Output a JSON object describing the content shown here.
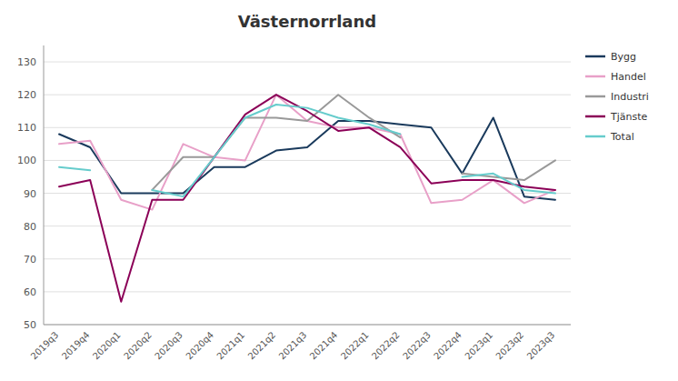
{
  "chart_data": {
    "type": "line",
    "title": "Västernorrland",
    "categories": [
      "2019q3",
      "2019q4",
      "2020q1",
      "2020q2",
      "2020q3",
      "2020q4",
      "2021q1",
      "2021q2",
      "2021q3",
      "2021q4",
      "2022q1",
      "2022q2",
      "2022q3",
      "2022q4",
      "2023q1",
      "2023q2",
      "2023q3"
    ],
    "series": [
      {
        "name": "Bygg",
        "color": "#1a3a5c",
        "values": [
          108,
          104,
          90,
          90,
          90,
          98,
          98,
          103,
          104,
          112,
          112,
          111,
          110,
          96,
          113,
          89,
          88
        ]
      },
      {
        "name": "Handel",
        "color": "#e8a0c8",
        "values": [
          105,
          106,
          88,
          85,
          105,
          101,
          100,
          120,
          112,
          110,
          110,
          108,
          87,
          88,
          94,
          87,
          91
        ]
      },
      {
        "name": "Industri",
        "color": "#999999",
        "values": [
          null,
          null,
          null,
          91,
          101,
          101,
          113,
          113,
          112,
          120,
          113,
          107,
          null,
          96,
          95,
          94,
          100
        ]
      },
      {
        "name": "Tjänste",
        "color": "#8b0057",
        "values": [
          92,
          94,
          57,
          88,
          88,
          101,
          114,
          120,
          115,
          109,
          110,
          104,
          93,
          94,
          94,
          92,
          91
        ]
      },
      {
        "name": "Total",
        "color": "#66cccc",
        "values": [
          98,
          97,
          null,
          91,
          89,
          101,
          113,
          117,
          116,
          113,
          111,
          108,
          null,
          95,
          96,
          91,
          90
        ]
      }
    ],
    "ylim": [
      50,
      135
    ],
    "yticks": [
      50,
      60,
      70,
      80,
      90,
      100,
      110,
      120,
      130
    ],
    "grid": true,
    "legend": "right"
  }
}
